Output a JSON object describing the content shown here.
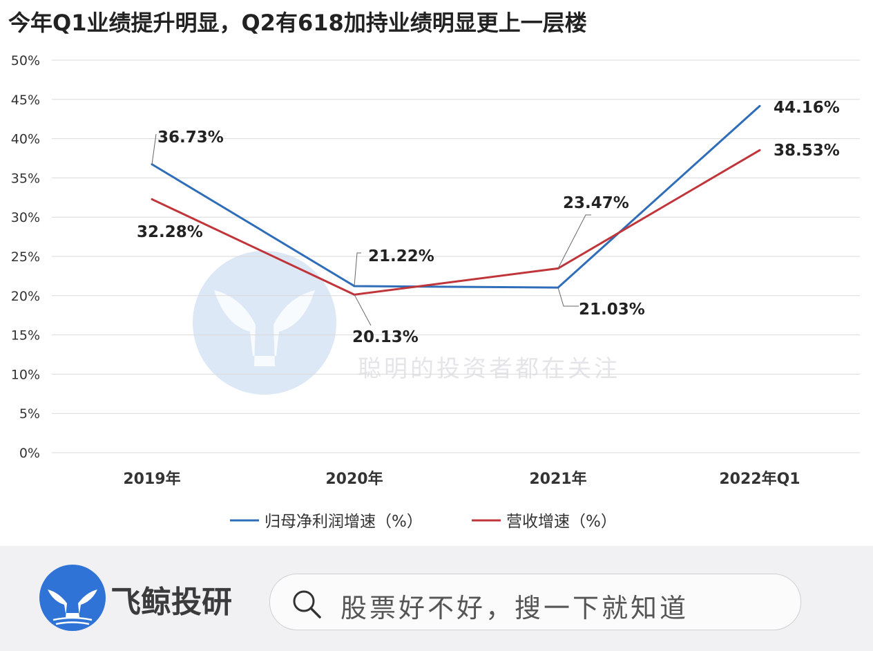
{
  "chart_data": {
    "type": "line",
    "title": "今年Q1业绩提升明显，Q2有618加持业绩明显更上一层楼",
    "categories": [
      "2019年",
      "2020年",
      "2021年",
      "2022年Q1"
    ],
    "series": [
      {
        "name": "归母净利润增速（%）",
        "color": "#2f6db8",
        "values": [
          36.73,
          21.22,
          21.03,
          44.16
        ],
        "labels": [
          "36.73%",
          "21.22%",
          "21.03%",
          "44.16%"
        ]
      },
      {
        "name": "营收增速（%）",
        "color": "#c0353a",
        "values": [
          32.28,
          20.13,
          23.47,
          38.53
        ],
        "labels": [
          "32.28%",
          "20.13%",
          "23.47%",
          "38.53%"
        ]
      }
    ],
    "ylim": [
      0,
      50
    ],
    "yticks": [
      "0%",
      "5%",
      "10%",
      "15%",
      "20%",
      "25%",
      "30%",
      "35%",
      "40%",
      "45%",
      "50%"
    ],
    "grid": true,
    "legend": "bottom"
  },
  "watermark": {
    "brand": "飞鲸投研",
    "slogan": "聪明的投资者都在关注"
  },
  "banner": {
    "brand": "飞鲸投研",
    "search_placeholder": "股票好不好，搜一下就知道",
    "logo_color": "#2f73d6"
  }
}
